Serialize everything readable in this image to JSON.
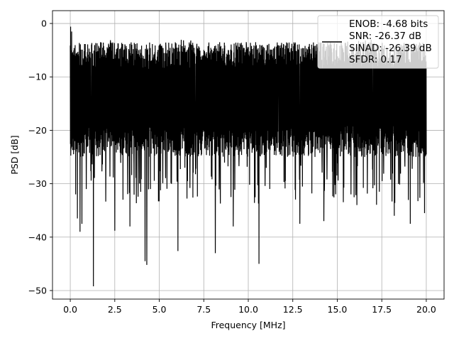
{
  "chart_data": {
    "type": "line",
    "title": "",
    "xlabel": "Frequency [MHz]",
    "ylabel": "PSD [dB]",
    "xlim": [
      -0.999,
      20.999
    ],
    "ylim": [
      -51.6,
      2.4
    ],
    "xticks": [
      0.0,
      2.5,
      5.0,
      7.5,
      10.0,
      12.5,
      15.0,
      17.5,
      20.0
    ],
    "xtick_labels": [
      "0.0",
      "2.5",
      "5.0",
      "7.5",
      "10.0",
      "12.5",
      "15.0",
      "17.5",
      "20.0"
    ],
    "yticks": [
      0,
      -10,
      -20,
      -30,
      -40,
      -50
    ],
    "ytick_labels": [
      "0",
      "−10",
      "−20",
      "−30",
      "−40",
      "−50"
    ],
    "grid": true,
    "legend_position": "top-right",
    "legend_entries": [
      "ENOB: -4.68 bits",
      "SNR: -26.37 dB",
      "SINAD: -26.39 dB",
      "SFDR: 0.17"
    ],
    "line_color": "#000000",
    "series": [
      {
        "x_range": [
          0.0,
          20.0
        ],
        "points": 2048,
        "baseline_dB": -14,
        "envelope_high_dB": -6,
        "envelope_low_dB": -22,
        "peaks": [
          {
            "x": 0.02,
            "y": -0.6
          },
          {
            "x": 0.08,
            "y": -1.5
          }
        ],
        "dips": [
          {
            "x": 0.3,
            "y": -32
          },
          {
            "x": 0.4,
            "y": -36.5
          },
          {
            "x": 0.55,
            "y": -39
          },
          {
            "x": 0.65,
            "y": -37.5
          },
          {
            "x": 0.9,
            "y": -31
          },
          {
            "x": 1.3,
            "y": -49.2
          },
          {
            "x": 2.5,
            "y": -38.8
          },
          {
            "x": 3.35,
            "y": -38
          },
          {
            "x": 4.2,
            "y": -44.5
          },
          {
            "x": 4.3,
            "y": -45.2
          },
          {
            "x": 6.05,
            "y": -42.6
          },
          {
            "x": 8.15,
            "y": -43
          },
          {
            "x": 9.15,
            "y": -38
          },
          {
            "x": 10.6,
            "y": -45
          },
          {
            "x": 12.9,
            "y": -37.5
          },
          {
            "x": 14.25,
            "y": -37
          },
          {
            "x": 16.1,
            "y": -34
          },
          {
            "x": 18.2,
            "y": -36
          },
          {
            "x": 19.1,
            "y": -37.5
          },
          {
            "x": 19.9,
            "y": -35.5
          }
        ]
      }
    ]
  }
}
